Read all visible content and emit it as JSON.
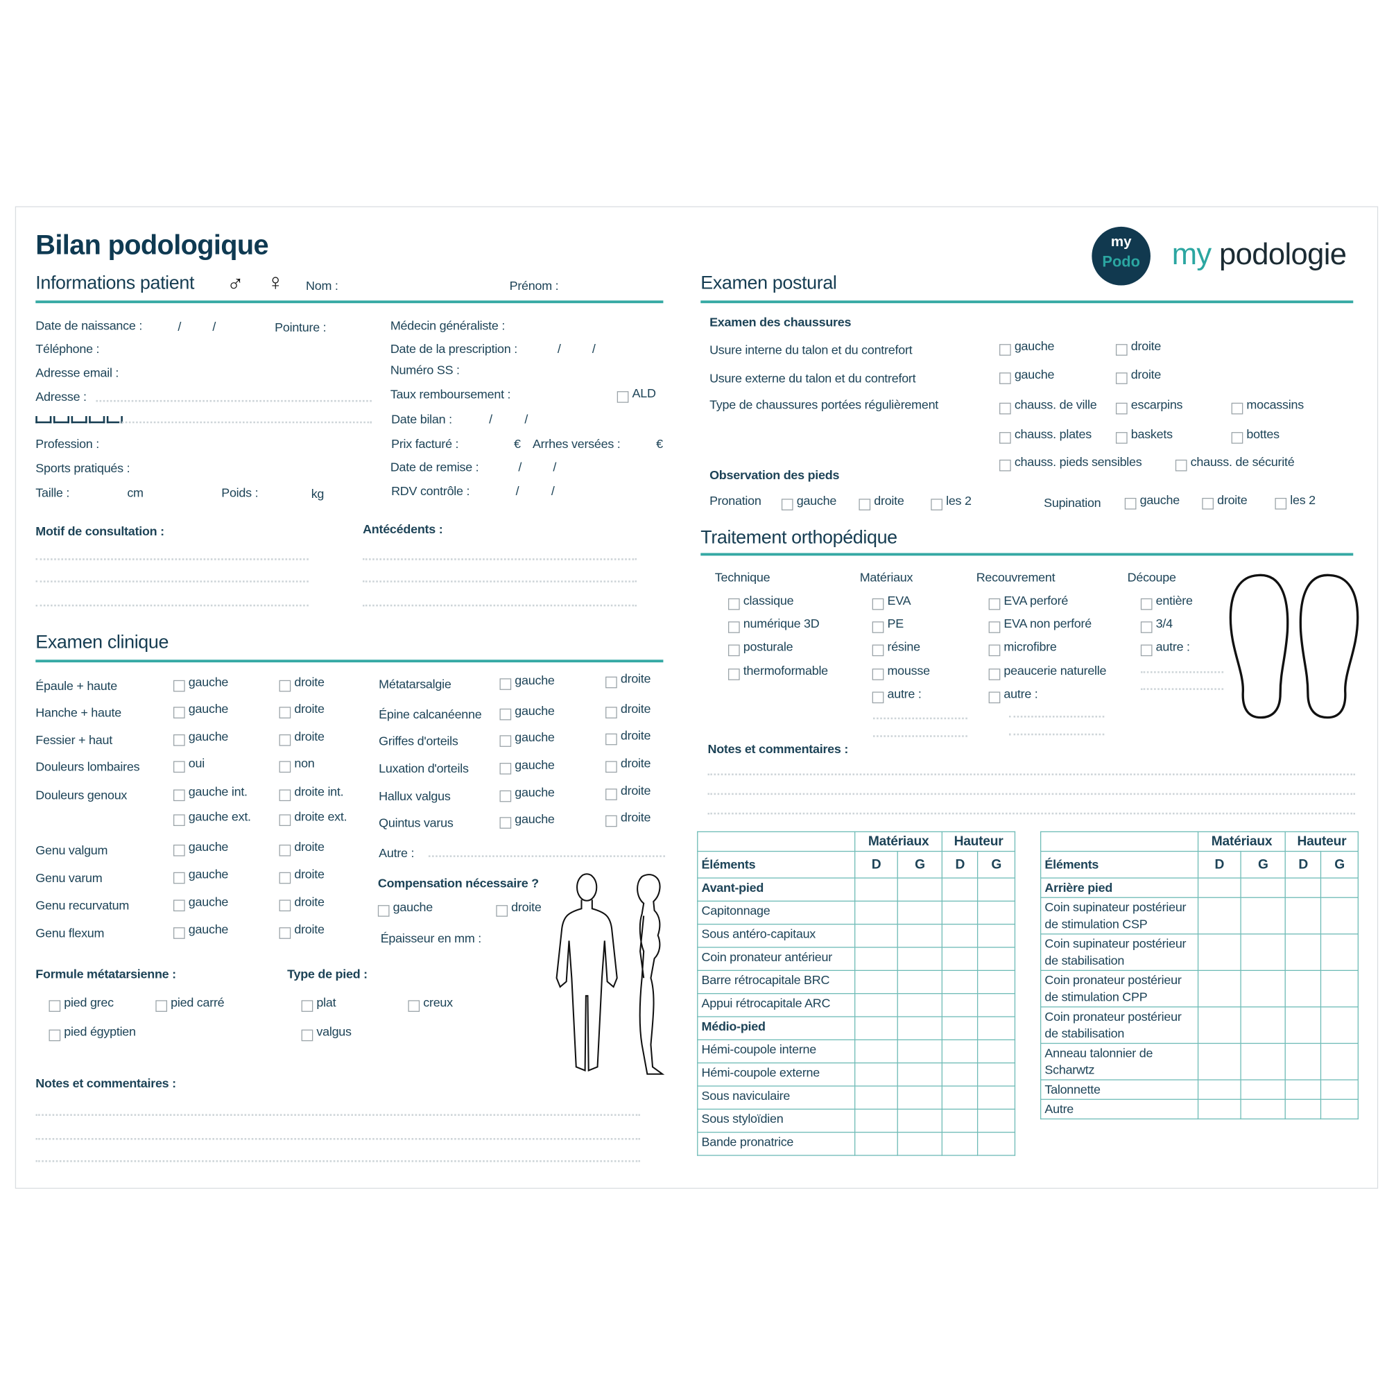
{
  "header": {
    "title": "Bilan podologique",
    "brand_prefix": "my",
    "brand_suffix": "podologie",
    "logo_top": "my",
    "logo_bottom": "Podo"
  },
  "colors": {
    "navy": "#0f3a52",
    "teal": "#36a9a4",
    "text": "#1d4357"
  },
  "patient": {
    "heading": "Informations patient",
    "male": "♂",
    "female": "♀",
    "nom": "Nom :",
    "prenom": "Prénom :",
    "birth": "Date de naissance :",
    "sep": "/",
    "pointure": "Pointure :",
    "phone": "Téléphone :",
    "email": "Adresse email :",
    "address": "Adresse :",
    "profession": "Profession :",
    "sports": "Sports pratiqués :",
    "taille": "Taille :",
    "cm": "cm",
    "poids": "Poids :",
    "kg": "kg",
    "medecin": "Médecin généraliste :",
    "prescription": "Date de la prescription :",
    "ss": "Numéro SS :",
    "taux": "Taux remboursement :",
    "ald": "ALD",
    "date_bilan": "Date bilan :",
    "prix": "Prix facturé :",
    "euro": "€",
    "arrhes": "Arrhes versées :",
    "remise": "Date de remise :",
    "rdv": "RDV contrôle :",
    "motif": "Motif de consultation :",
    "antecedents": "Antécédents :"
  },
  "clinique": {
    "heading": "Examen clinique",
    "left": [
      {
        "label": "Épaule + haute",
        "a": "gauche",
        "b": "droite"
      },
      {
        "label": "Hanche + haute",
        "a": "gauche",
        "b": "droite"
      },
      {
        "label": "Fessier + haut",
        "a": "gauche",
        "b": "droite"
      },
      {
        "label": "Douleurs lombaires",
        "a": "oui",
        "b": "non"
      },
      {
        "label": "Douleurs genoux",
        "a": "gauche int.",
        "b": "droite int."
      },
      {
        "label": "",
        "a": "gauche ext.",
        "b": "droite ext."
      },
      {
        "label": "Genu valgum",
        "a": "gauche",
        "b": "droite"
      },
      {
        "label": "Genu varum",
        "a": "gauche",
        "b": "droite"
      },
      {
        "label": "Genu recurvatum",
        "a": "gauche",
        "b": "droite"
      },
      {
        "label": "Genu flexum",
        "a": "gauche",
        "b": "droite"
      }
    ],
    "right": [
      {
        "label": "Métatarsalgie",
        "a": "gauche",
        "b": "droite"
      },
      {
        "label": "Épine calcanéenne",
        "a": "gauche",
        "b": "droite"
      },
      {
        "label": "Griffes d'orteils",
        "a": "gauche",
        "b": "droite"
      },
      {
        "label": "Luxation d'orteils",
        "a": "gauche",
        "b": "droite"
      },
      {
        "label": "Hallux valgus",
        "a": "gauche",
        "b": "droite"
      },
      {
        "label": "Quintus varus",
        "a": "gauche",
        "b": "droite"
      }
    ],
    "autre": "Autre :",
    "compensation": "Compensation nécessaire ?",
    "comp_options": [
      "gauche",
      "droite"
    ],
    "epaisseur": "Épaisseur en mm :",
    "formule": "Formule métatarsienne :",
    "formule_options": [
      "pied grec",
      "pied carré",
      "pied égyptien"
    ],
    "type_pied": "Type de pied :",
    "type_options": [
      "plat",
      "creux",
      "valgus"
    ],
    "notes": "Notes et commentaires :"
  },
  "postural": {
    "heading": "Examen postural",
    "chaussures": "Examen des chaussures",
    "usure_int": "Usure interne du talon et du contrefort",
    "usure_ext": "Usure externe du talon et du contrefort",
    "type": "Type de chaussures portées régulièrement",
    "side": [
      "gauche",
      "droite"
    ],
    "shoes": [
      "chauss. de ville",
      "escarpins",
      "mocassins",
      "chauss. plates",
      "baskets",
      "bottes",
      "chauss. pieds sensibles",
      "chauss. de sécurité"
    ],
    "observation": "Observation des pieds",
    "pronation": "Pronation",
    "supination": "Supination",
    "obs_options": [
      "gauche",
      "droite",
      "les 2"
    ]
  },
  "traitement": {
    "heading": "Traitement orthopédique",
    "columns": [
      {
        "title": "Technique",
        "items": [
          "classique",
          "numérique 3D",
          "posturale",
          "thermoformable"
        ]
      },
      {
        "title": "Matériaux",
        "items": [
          "EVA",
          "PE",
          "résine",
          "mousse",
          "autre :"
        ]
      },
      {
        "title": "Recouvrement",
        "items": [
          "EVA perforé",
          "EVA non perforé",
          "microfibre",
          "peaucerie naturelle",
          "autre :"
        ]
      },
      {
        "title": "Découpe",
        "items": [
          "entière",
          "3/4",
          "autre :"
        ]
      }
    ],
    "notes": "Notes et commentaires :"
  },
  "tables": [
    {
      "head_elements": "Éléments",
      "head_mat": "Matériaux",
      "head_haut": "Hauteur",
      "sub": [
        "D",
        "G",
        "D",
        "G"
      ],
      "rows": [
        {
          "label": "Avant-pied",
          "bold": true
        },
        {
          "label": "Capitonnage"
        },
        {
          "label": "Sous antéro-capitaux"
        },
        {
          "label": "Coin pronateur antérieur"
        },
        {
          "label": "Barre rétrocapitale BRC"
        },
        {
          "label": "Appui rétrocapitale ARC"
        },
        {
          "label": "Médio-pied",
          "bold": true
        },
        {
          "label": "Hémi-coupole interne"
        },
        {
          "label": "Hémi-coupole externe"
        },
        {
          "label": "Sous naviculaire"
        },
        {
          "label": "Sous styloïdien"
        },
        {
          "label": "Bande pronatrice"
        }
      ]
    },
    {
      "head_elements": "Éléments",
      "head_mat": "Matériaux",
      "head_haut": "Hauteur",
      "sub": [
        "D",
        "G",
        "D",
        "G"
      ],
      "rows": [
        {
          "label": "Arrière pied",
          "bold": true
        },
        {
          "label": "Coin supinateur postérieur\nde stimulation CSP"
        },
        {
          "label": "Coin supinateur postérieur\nde stabilisation"
        },
        {
          "label": "Coin pronateur postérieur\nde stimulation CPP"
        },
        {
          "label": "Coin pronateur postérieur\nde stabilisation"
        },
        {
          "label": "Anneau talonnier de\nScharwtz"
        },
        {
          "label": "Talonnette"
        },
        {
          "label": "Autre"
        }
      ]
    }
  ]
}
